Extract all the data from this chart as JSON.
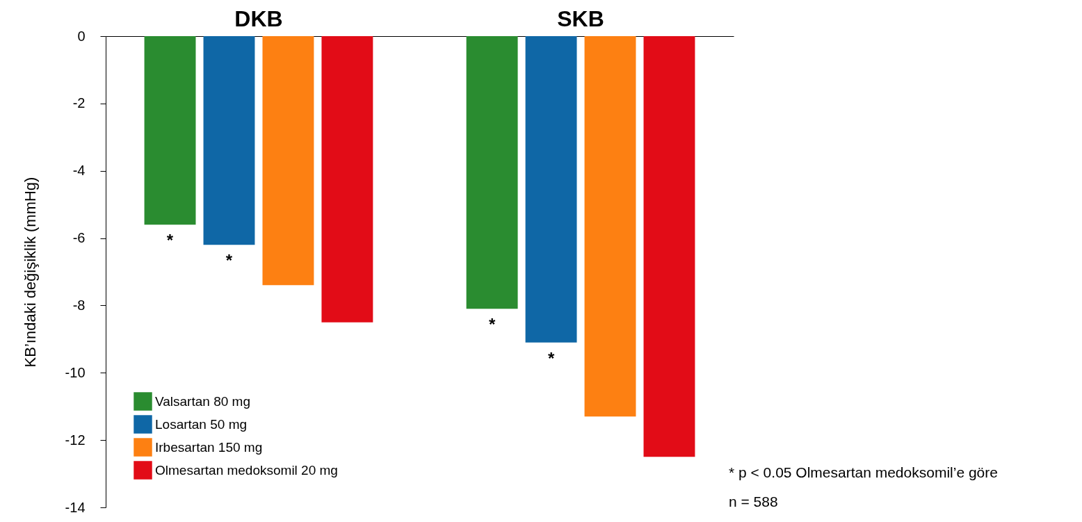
{
  "chart_data": {
    "type": "bar",
    "ylabel": "KB’ındaki değişiklik (mmHg)",
    "categories": [
      "DKB",
      "SKB"
    ],
    "series": [
      {
        "name": "Valsartan 80 mg",
        "color": "#2a8c30",
        "values": [
          -5.6,
          -8.1
        ],
        "value_labels": [
          "*",
          "*"
        ]
      },
      {
        "name": "Losartan 50 mg",
        "color": "#0f67a6",
        "values": [
          -6.2,
          -9.1
        ],
        "value_labels": [
          "*",
          "*"
        ]
      },
      {
        "name": "Irbesartan 150 mg",
        "color": "#fd8012",
        "values": [
          -7.4,
          -11.3
        ],
        "value_labels": [
          null,
          null
        ]
      },
      {
        "name": "Olmesartan medoksomil 20 mg",
        "color": "#e20c17",
        "values": [
          -8.5,
          -12.5
        ],
        "value_labels": [
          null,
          null
        ]
      }
    ],
    "ylim": [
      -14,
      0
    ],
    "yticks": [
      0,
      -2,
      -4,
      -6,
      -8,
      -10,
      -12,
      -14
    ],
    "grid": false,
    "legend": "bottom left",
    "annotations": [
      "* p < 0.05 Olmesartan medoksomil’e göre",
      "n = 588"
    ]
  }
}
